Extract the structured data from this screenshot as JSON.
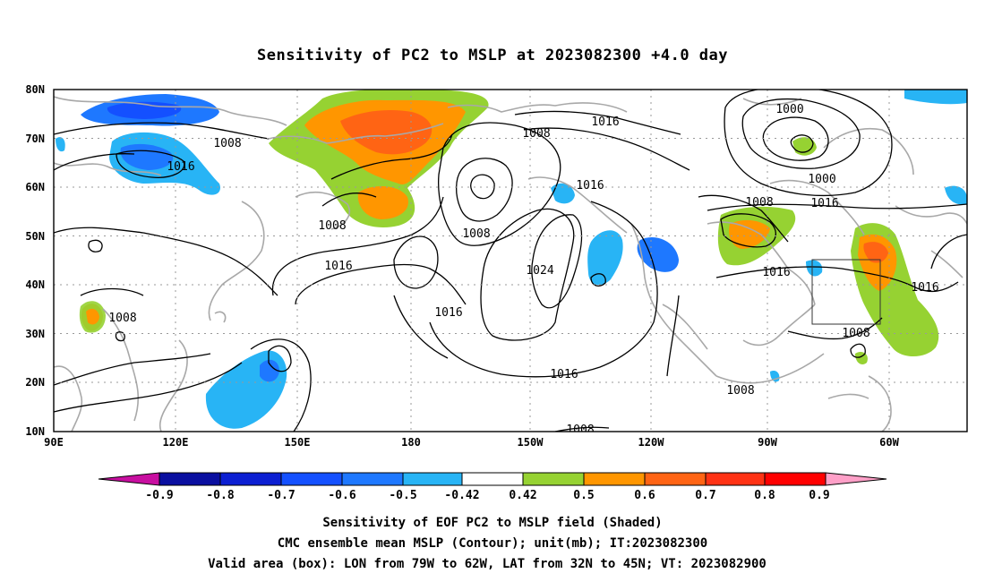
{
  "title": "Sensitivity of PC2 to MSLP at 2023082300 +4.0 day",
  "axes": {
    "lon_labels": [
      "90E",
      "120E",
      "150E",
      "180",
      "150W",
      "120W",
      "90W",
      "60W"
    ],
    "lat_labels": [
      "80N",
      "70N",
      "60N",
      "50N",
      "40N",
      "30N",
      "20N",
      "10N"
    ]
  },
  "colorbar": {
    "labels": [
      "-0.9",
      "-0.8",
      "-0.7",
      "-0.6",
      "-0.5",
      "-0.42",
      "0.42",
      "0.5",
      "0.6",
      "0.7",
      "0.8",
      "0.9"
    ],
    "colors": [
      "#c80fa0",
      "#0a0fa0",
      "#0c1fd2",
      "#1450ff",
      "#1e78ff",
      "#28b4f5",
      "#ffffff",
      "#96d232",
      "#ff9600",
      "#ff6414",
      "#ff3214",
      "#ff0000",
      "#ffa0c8"
    ]
  },
  "contour_labels": {
    "c1": "1016",
    "c2": "1008",
    "c3": "1000",
    "c4": "1000",
    "c5": "1008",
    "c6": "1016",
    "c7": "1016",
    "c8": "1008",
    "c9": "1016",
    "c10": "1008",
    "c11": "1016",
    "c12": "1008",
    "c13": "1016",
    "c14": "1008",
    "c15": "1016",
    "c16": "1016",
    "c17": "1024",
    "c18": "1008",
    "c19": "1016",
    "c20": "1008",
    "c21": "1016",
    "c22": "1008"
  },
  "footer": {
    "line1": "Sensitivity of EOF PC2 to MSLP field (Shaded)",
    "line2": "CMC ensemble mean MSLP (Contour); unit(mb); IT:2023082300",
    "line3": "Valid area (box): LON from 79W to 62W, LAT from 32N to 45N; VT: 2023082900"
  }
}
